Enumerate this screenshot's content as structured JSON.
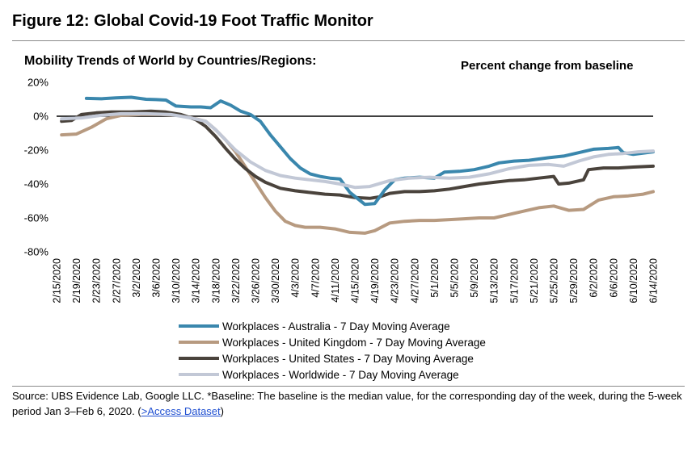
{
  "figure": {
    "title": "Figure 12: Global Covid-19 Foot Traffic Monitor",
    "source_prefix": "Source:  UBS Evidence Lab, Google LLC. *Baseline: The baseline is the median value, for the corresponding day of the week, during the 5-week period Jan 3–Feb 6, 2020. (",
    "source_link": ">Access Dataset",
    "source_suffix": ")"
  },
  "chart_data": {
    "type": "line",
    "title": "Mobility Trends of World by Countries/Regions:",
    "units_label": "Percent change from baseline",
    "ylim": [
      -80,
      20
    ],
    "y_ticks": [
      20,
      0,
      -20,
      -40,
      -60,
      -80
    ],
    "y_tick_labels": [
      "20%",
      "0%",
      "-20%",
      "-40%",
      "-60%",
      "-80%"
    ],
    "x_tick_labels": [
      "2/15/2020",
      "2/19/2020",
      "2/23/2020",
      "2/27/2020",
      "3/2/2020",
      "3/6/2020",
      "3/10/2020",
      "3/14/2020",
      "3/18/2020",
      "3/22/2020",
      "3/26/2020",
      "3/30/2020",
      "4/3/2020",
      "4/7/2020",
      "4/11/2020",
      "4/15/2020",
      "4/19/2020",
      "4/23/2020",
      "4/27/2020",
      "5/1/2020",
      "5/5/2020",
      "5/9/2020",
      "5/13/2020",
      "5/17/2020",
      "5/21/2020",
      "5/25/2020",
      "5/29/2020",
      "6/2/2020",
      "6/6/2020",
      "6/10/2020",
      "6/14/2020"
    ],
    "grid": false,
    "legend_position": "bottom",
    "series": [
      {
        "name": "Workplaces - Australia - 7 Day Moving Average",
        "color": "#3a87ad",
        "x": [
          "2/21/2020",
          "2/24/2020",
          "2/27/2020",
          "3/1/2020",
          "3/4/2020",
          "3/6/2020",
          "3/8/2020",
          "3/10/2020",
          "3/13/2020",
          "3/15/2020",
          "3/17/2020",
          "3/19/2020",
          "3/21/2020",
          "3/23/2020",
          "3/25/2020",
          "3/27/2020",
          "3/29/2020",
          "3/31/2020",
          "4/2/2020",
          "4/4/2020",
          "4/6/2020",
          "4/8/2020",
          "4/10/2020",
          "4/12/2020",
          "4/14/2020",
          "4/17/2020",
          "4/19/2020",
          "4/21/2020",
          "4/23/2020",
          "4/25/2020",
          "4/28/2020",
          "5/1/2020",
          "5/3/2020",
          "5/6/2020",
          "5/9/2020",
          "5/12/2020",
          "5/14/2020",
          "5/17/2020",
          "5/20/2020",
          "5/24/2020",
          "5/27/2020",
          "5/30/2020",
          "6/2/2020",
          "6/5/2020",
          "6/7/2020",
          "6/8/2020",
          "6/10/2020",
          "6/14/2020"
        ],
        "values": [
          10.5,
          10.3,
          10.8,
          11.2,
          10.0,
          9.8,
          9.5,
          6.0,
          5.5,
          5.5,
          5.0,
          9.0,
          6.5,
          3.0,
          1.0,
          -3.0,
          -11.0,
          -18.0,
          -25.0,
          -30.5,
          -34.0,
          -35.5,
          -36.5,
          -37.0,
          -45.0,
          -52.0,
          -51.5,
          -43.5,
          -37.5,
          -36.5,
          -36.0,
          -36.5,
          -33.0,
          -32.5,
          -31.5,
          -29.5,
          -27.5,
          -26.5,
          -26.0,
          -24.5,
          -23.5,
          -21.5,
          -19.5,
          -19.0,
          -18.5,
          -21.5,
          -22.5,
          -21.0
        ]
      },
      {
        "name": "Workplaces - United Kingdom - 7 Day Moving Average",
        "color": "#b79a80",
        "x": [
          "2/16/2020",
          "2/19/2020",
          "2/22/2020",
          "2/25/2020",
          "2/28/2020",
          "3/3/2020",
          "3/7/2020",
          "3/11/2020",
          "3/14/2020",
          "3/16/2020",
          "3/18/2020",
          "3/20/2020",
          "3/22/2020",
          "3/24/2020",
          "3/26/2020",
          "3/28/2020",
          "3/30/2020",
          "4/1/2020",
          "4/3/2020",
          "4/5/2020",
          "4/8/2020",
          "4/11/2020",
          "4/14/2020",
          "4/17/2020",
          "4/19/2020",
          "4/22/2020",
          "4/25/2020",
          "4/28/2020",
          "5/1/2020",
          "5/4/2020",
          "5/7/2020",
          "5/10/2020",
          "5/13/2020",
          "5/16/2020",
          "5/19/2020",
          "5/22/2020",
          "5/25/2020",
          "5/28/2020",
          "5/31/2020",
          "6/3/2020",
          "6/6/2020",
          "6/9/2020",
          "6/12/2020",
          "6/14/2020"
        ],
        "values": [
          -11.0,
          -10.5,
          -6.5,
          -1.5,
          0.5,
          1.0,
          1.0,
          0.5,
          -1.5,
          -3.0,
          -8.0,
          -14.0,
          -21.0,
          -30.0,
          -39.0,
          -48.0,
          -56.0,
          -62.0,
          -64.5,
          -65.5,
          -65.5,
          -66.5,
          -68.5,
          -69.0,
          -67.5,
          -63.0,
          -62.0,
          -61.5,
          -61.5,
          -61.0,
          -60.5,
          -60.0,
          -60.0,
          -58.0,
          -56.0,
          -54.0,
          -53.0,
          -55.5,
          -55.0,
          -49.5,
          -47.5,
          -47.0,
          -46.0,
          -44.5
        ]
      },
      {
        "name": "Workplaces - United States - 7 Day Moving Average",
        "color": "#4a433c",
        "x": [
          "2/16/2020",
          "2/18/2020",
          "2/20/2020",
          "2/23/2020",
          "2/26/2020",
          "3/1/2020",
          "3/5/2020",
          "3/8/2020",
          "3/11/2020",
          "3/14/2020",
          "3/16/2020",
          "3/18/2020",
          "3/20/2020",
          "3/22/2020",
          "3/24/2020",
          "3/26/2020",
          "3/28/2020",
          "3/31/2020",
          "4/3/2020",
          "4/6/2020",
          "4/9/2020",
          "4/12/2020",
          "4/15/2020",
          "4/18/2020",
          "4/20/2020",
          "4/22/2020",
          "4/25/2020",
          "4/28/2020",
          "5/1/2020",
          "5/4/2020",
          "5/7/2020",
          "5/10/2020",
          "5/13/2020",
          "5/16/2020",
          "5/19/2020",
          "5/22/2020",
          "5/25/2020",
          "5/26/2020",
          "5/28/2020",
          "5/31/2020",
          "6/1/2020",
          "6/4/2020",
          "6/7/2020",
          "6/10/2020",
          "6/14/2020"
        ],
        "values": [
          -3.0,
          -2.5,
          1.0,
          2.0,
          2.5,
          2.5,
          3.0,
          2.5,
          1.0,
          -2.0,
          -6.0,
          -12.0,
          -19.0,
          -25.5,
          -31.0,
          -35.5,
          -39.0,
          -42.5,
          -44.0,
          -45.0,
          -46.0,
          -46.5,
          -48.0,
          -48.5,
          -47.5,
          -45.5,
          -44.5,
          -44.5,
          -44.0,
          -43.0,
          -41.5,
          -40.0,
          -39.0,
          -38.0,
          -37.5,
          -36.5,
          -35.5,
          -40.0,
          -39.5,
          -37.5,
          -31.5,
          -30.5,
          -30.5,
          -30.0,
          -29.5
        ]
      },
      {
        "name": "Workplaces -  Worldwide - 7 Day Moving Average",
        "color": "#c2c8d6",
        "x": [
          "2/16/2020",
          "2/20/2020",
          "2/24/2020",
          "2/28/2020",
          "3/4/2020",
          "3/9/2020",
          "3/13/2020",
          "3/16/2020",
          "3/18/2020",
          "3/20/2020",
          "3/22/2020",
          "3/25/2020",
          "3/28/2020",
          "3/31/2020",
          "4/3/2020",
          "4/6/2020",
          "4/9/2020",
          "4/12/2020",
          "4/15/2020",
          "4/18/2020",
          "4/22/2020",
          "4/26/2020",
          "4/30/2020",
          "5/4/2020",
          "5/8/2020",
          "5/12/2020",
          "5/16/2020",
          "5/20/2020",
          "5/24/2020",
          "5/27/2020",
          "5/30/2020",
          "6/2/2020",
          "6/5/2020",
          "6/8/2020",
          "6/11/2020",
          "6/14/2020"
        ],
        "values": [
          -1.5,
          -1.0,
          0.5,
          1.5,
          1.5,
          1.0,
          -1.0,
          -3.0,
          -8.0,
          -14.0,
          -20.0,
          -27.0,
          -32.0,
          -35.0,
          -36.5,
          -37.5,
          -38.5,
          -40.0,
          -42.0,
          -41.5,
          -38.0,
          -36.5,
          -36.0,
          -36.5,
          -36.0,
          -34.0,
          -31.0,
          -29.0,
          -28.5,
          -29.5,
          -26.5,
          -24.0,
          -22.5,
          -22.0,
          -21.0,
          -20.5
        ]
      }
    ]
  }
}
